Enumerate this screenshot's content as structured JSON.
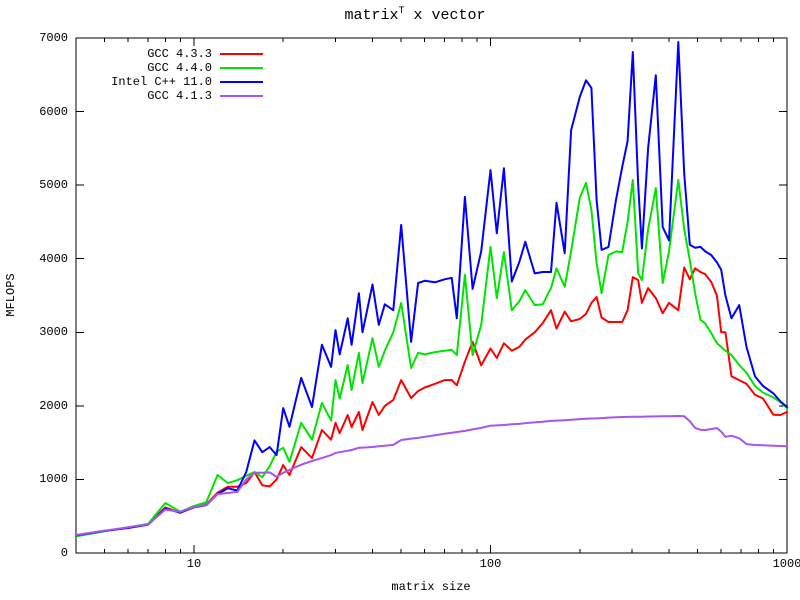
{
  "title_parts": {
    "pre": "matrix",
    "sup": "T",
    "post": " x vector"
  },
  "chart_data": {
    "type": "line",
    "title": "matrix^T x vector",
    "xlabel": "matrix size",
    "ylabel": "MFLOPS",
    "xscale": "log",
    "xlim": [
      4,
      1000
    ],
    "ylim": [
      0,
      7000
    ],
    "grid": false,
    "legend_position": "top-left",
    "yticks": [
      0,
      1000,
      2000,
      3000,
      4000,
      5000,
      6000,
      7000
    ],
    "xticks_major": [
      10,
      100,
      1000
    ],
    "xticks_minor": [
      5,
      6,
      7,
      8,
      9,
      20,
      30,
      40,
      50,
      60,
      70,
      80,
      90,
      200,
      300,
      400,
      500,
      600,
      700,
      800,
      900
    ],
    "x": [
      4,
      5,
      6,
      7,
      8,
      9,
      10,
      11,
      12,
      13,
      14,
      15,
      16,
      17,
      18,
      19,
      20,
      21,
      23,
      25,
      27,
      29,
      30,
      31,
      33,
      34,
      36,
      37,
      40,
      42,
      44,
      47,
      50,
      54,
      57,
      60,
      65,
      70,
      74,
      77,
      82,
      87,
      93,
      100,
      105,
      111,
      118,
      125,
      131,
      141,
      150,
      160,
      167,
      178,
      187,
      200,
      210,
      219,
      228,
      237,
      250,
      265,
      278,
      290,
      302,
      315,
      324,
      340,
      361,
      381,
      400,
      430,
      450,
      470,
      490,
      511,
      530,
      555,
      580,
      600,
      620,
      650,
      690,
      730,
      780,
      830,
      900,
      950,
      1000
    ],
    "series": [
      {
        "name": "GCC 4.3.3",
        "color": "#ff0000",
        "values": [
          240,
          300,
          345,
          390,
          620,
          545,
          630,
          660,
          820,
          900,
          900,
          950,
          1100,
          920,
          905,
          1000,
          1195,
          1060,
          1440,
          1290,
          1670,
          1540,
          1770,
          1630,
          1876,
          1713,
          1917,
          1672,
          2053,
          1876,
          2000,
          2080,
          2350,
          2107,
          2200,
          2250,
          2300,
          2350,
          2352,
          2280,
          2600,
          2870,
          2550,
          2780,
          2650,
          2850,
          2750,
          2800,
          2900,
          3000,
          3125,
          3300,
          3050,
          3280,
          3150,
          3180,
          3250,
          3400,
          3480,
          3200,
          3140,
          3140,
          3140,
          3300,
          3750,
          3710,
          3400,
          3600,
          3465,
          3260,
          3400,
          3300,
          3880,
          3720,
          3870,
          3820,
          3790,
          3685,
          3500,
          3000,
          3000,
          2400,
          2350,
          2300,
          2150,
          2100,
          1878,
          1876,
          1917
        ]
      },
      {
        "name": "GCC 4.4.0",
        "color": "#00e500",
        "values": [
          225,
          295,
          350,
          395,
          680,
          560,
          640,
          690,
          1060,
          950,
          990,
          1050,
          1100,
          1030,
          1180,
          1375,
          1430,
          1240,
          1770,
          1540,
          2040,
          1800,
          2350,
          2100,
          2555,
          2215,
          2720,
          2310,
          2920,
          2530,
          2750,
          3000,
          3400,
          2515,
          2720,
          2700,
          2730,
          2750,
          2760,
          2690,
          3780,
          2690,
          3100,
          4160,
          3465,
          4090,
          3300,
          3420,
          3574,
          3370,
          3380,
          3600,
          3870,
          3620,
          4100,
          4830,
          5030,
          4665,
          3940,
          3530,
          4050,
          4100,
          4090,
          4500,
          5070,
          3800,
          3710,
          4400,
          4960,
          3670,
          4100,
          5070,
          4400,
          3980,
          3530,
          3170,
          3120,
          2990,
          2853,
          2800,
          2750,
          2690,
          2555,
          2450,
          2270,
          2180,
          2115,
          2050,
          1971
        ]
      },
      {
        "name": "Intel C++ 11.0",
        "color": "#0000ff",
        "values": [
          240,
          300,
          340,
          385,
          600,
          550,
          620,
          650,
          800,
          880,
          850,
          1100,
          1530,
          1370,
          1440,
          1330,
          1970,
          1715,
          2380,
          1985,
          2830,
          2530,
          3030,
          2700,
          3190,
          2830,
          3530,
          3000,
          3650,
          3100,
          3380,
          3300,
          4460,
          2870,
          3670,
          3700,
          3680,
          3720,
          3740,
          3190,
          4840,
          3590,
          4100,
          5205,
          4345,
          5230,
          3690,
          3950,
          4230,
          3800,
          3820,
          3820,
          4760,
          4075,
          5745,
          6200,
          6425,
          6320,
          4800,
          4120,
          4160,
          4800,
          5245,
          5600,
          6810,
          5000,
          4140,
          5500,
          6495,
          4430,
          4250,
          6945,
          5160,
          4190,
          4150,
          4160,
          4100,
          4050,
          3950,
          3850,
          3500,
          3190,
          3370,
          2800,
          2400,
          2270,
          2170,
          2060,
          1985
        ]
      },
      {
        "name": "GCC 4.1.3",
        "color": "#a855f0",
        "values": [
          245,
          305,
          350,
          390,
          590,
          560,
          625,
          655,
          800,
          815,
          830,
          1000,
          1090,
          1090,
          1095,
          1035,
          1090,
          1130,
          1200,
          1250,
          1290,
          1330,
          1360,
          1370,
          1390,
          1400,
          1430,
          1432,
          1441,
          1450,
          1458,
          1470,
          1536,
          1555,
          1565,
          1580,
          1600,
          1620,
          1635,
          1645,
          1660,
          1680,
          1700,
          1730,
          1735,
          1740,
          1750,
          1755,
          1765,
          1775,
          1785,
          1795,
          1800,
          1805,
          1810,
          1820,
          1825,
          1828,
          1830,
          1833,
          1840,
          1845,
          1848,
          1850,
          1852,
          1853,
          1853,
          1855,
          1857,
          1858,
          1860,
          1862,
          1860,
          1790,
          1700,
          1675,
          1670,
          1685,
          1698,
          1650,
          1580,
          1595,
          1560,
          1480,
          1468,
          1465,
          1458,
          1455,
          1450
        ]
      }
    ]
  }
}
